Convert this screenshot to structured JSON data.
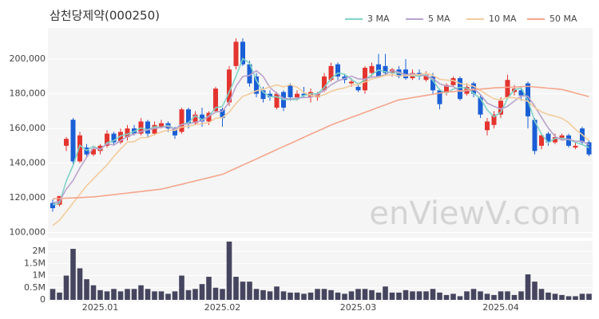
{
  "chart_data": [
    {
      "type": "candlestick",
      "title": "삼천당제약(000250)",
      "watermark": "enViewV.com",
      "up_color": "#e4342f",
      "down_color": "#1a5fd6",
      "open": [
        117000,
        116000,
        150000,
        165000,
        141000,
        149000,
        145000,
        147000,
        150000,
        157000,
        152000,
        155000,
        160000,
        157000,
        164000,
        157000,
        161000,
        163000,
        160000,
        158000,
        171000,
        163000,
        168000,
        164000,
        170000,
        171000,
        175000,
        196000,
        210000,
        197000,
        190000,
        182000,
        180000,
        172000,
        181000,
        185000,
        178000,
        180000,
        178000,
        178000,
        182000,
        188000,
        197000,
        190000,
        186000,
        184000,
        182000,
        192000,
        197000,
        196000,
        192000,
        194000,
        194000,
        189000,
        192000,
        188000,
        190000,
        182000,
        181000,
        185000,
        189000,
        180000,
        186000,
        178000,
        159000,
        162000,
        168000,
        178000,
        181000,
        182000,
        186000,
        165000,
        150000,
        157000,
        152000,
        154000,
        156000,
        149000,
        160000,
        152000
      ],
      "high": [
        119000,
        121000,
        155000,
        166000,
        158000,
        151000,
        150000,
        151000,
        159000,
        158000,
        160000,
        162000,
        162000,
        166000,
        165000,
        164000,
        165000,
        164000,
        161000,
        172000,
        172000,
        170000,
        172000,
        170000,
        184000,
        172000,
        196000,
        212000,
        212000,
        199000,
        192000,
        184000,
        182000,
        181000,
        182000,
        186000,
        182000,
        184000,
        183000,
        181000,
        192000,
        198000,
        198000,
        191000,
        189000,
        186000,
        196000,
        198000,
        203000,
        203000,
        195000,
        196000,
        200000,
        194000,
        194000,
        193000,
        192000,
        183000,
        186000,
        190000,
        190000,
        186000,
        187000,
        179000,
        166000,
        170000,
        178000,
        191000,
        185000,
        184000,
        187000,
        166000,
        157000,
        158000,
        157000,
        157000,
        157000,
        152000,
        161000,
        153000
      ],
      "low": [
        112000,
        115000,
        147000,
        138000,
        140000,
        144000,
        144000,
        145000,
        149000,
        150000,
        151000,
        153000,
        156000,
        156000,
        155000,
        156000,
        160000,
        158000,
        154000,
        157000,
        160000,
        162000,
        161000,
        162000,
        169000,
        161000,
        173000,
        194000,
        196000,
        184000,
        178000,
        175000,
        176000,
        171000,
        170000,
        176000,
        176000,
        178000,
        175000,
        176000,
        181000,
        187000,
        188000,
        186000,
        184000,
        181000,
        180000,
        190000,
        189000,
        191000,
        190000,
        189000,
        188000,
        188000,
        188000,
        187000,
        180000,
        171000,
        179000,
        184000,
        176000,
        179000,
        178000,
        166000,
        156000,
        160000,
        166000,
        177000,
        179000,
        176000,
        160000,
        145000,
        148000,
        150000,
        151000,
        153000,
        149000,
        148000,
        151000,
        144000
      ],
      "close": [
        114000,
        121000,
        154000,
        141000,
        156000,
        145000,
        148000,
        150000,
        157000,
        152000,
        158000,
        160000,
        157000,
        164000,
        157000,
        162000,
        163000,
        160000,
        156000,
        171000,
        163000,
        168000,
        164000,
        169000,
        183000,
        166000,
        194000,
        210000,
        197000,
        186000,
        180000,
        177000,
        178000,
        180000,
        172000,
        178000,
        180000,
        179000,
        181000,
        180000,
        190000,
        196000,
        190000,
        188000,
        187000,
        182000,
        195000,
        196000,
        190000,
        192000,
        194000,
        190000,
        189000,
        192000,
        190000,
        191000,
        182000,
        174000,
        185000,
        189000,
        177000,
        184000,
        180000,
        168000,
        164000,
        168000,
        176000,
        188000,
        183000,
        179000,
        167000,
        147000,
        156000,
        152000,
        155000,
        156000,
        150000,
        150000,
        152000,
        145000
      ],
      "series": [
        {
          "name": "3 MA",
          "color": "#7fd3c6",
          "values": [
            116000,
            117000,
            129700,
            138700,
            150300,
            147300,
            149700,
            147700,
            151700,
            153000,
            155700,
            156700,
            158300,
            160300,
            159300,
            161000,
            160700,
            161700,
            159700,
            162300,
            163300,
            167300,
            165000,
            167000,
            172000,
            172700,
            181000,
            190000,
            200300,
            197700,
            187700,
            181000,
            178300,
            178300,
            176700,
            176700,
            176700,
            179000,
            180000,
            180000,
            183700,
            188700,
            192000,
            191300,
            188300,
            185700,
            188000,
            191000,
            193700,
            192700,
            192000,
            192000,
            191000,
            190300,
            190300,
            191000,
            187700,
            182300,
            180300,
            182700,
            183700,
            183300,
            180300,
            177300,
            170700,
            166700,
            169300,
            177300,
            182300,
            183300,
            176300,
            164300,
            156700,
            151700,
            154300,
            154300,
            153700,
            152000,
            150700,
            149000
          ]
        },
        {
          "name": "5 MA",
          "color": "#b9a3cc",
          "values": [
            117000,
            118000,
            125000,
            130000,
            137200,
            143400,
            148800,
            148000,
            151200,
            150400,
            153000,
            155400,
            156800,
            158200,
            159200,
            160000,
            160600,
            161200,
            159600,
            162400,
            162600,
            163600,
            164400,
            167000,
            169400,
            170000,
            175200,
            184400,
            190000,
            190600,
            193400,
            190000,
            183600,
            180200,
            177400,
            177000,
            177600,
            177800,
            178000,
            179600,
            182000,
            185200,
            187400,
            188800,
            190200,
            188600,
            188400,
            189600,
            190000,
            191000,
            193400,
            192400,
            191000,
            191400,
            191000,
            190400,
            188800,
            185800,
            184400,
            184200,
            181400,
            181800,
            183000,
            179600,
            174600,
            172800,
            171200,
            172800,
            175800,
            178800,
            178600,
            172800,
            166400,
            160200,
            155400,
            153200,
            153800,
            152600,
            152600,
            150600
          ]
        },
        {
          "name": "10 MA",
          "color": "#f3cb9c",
          "values": [
            104000,
            107000,
            112000,
            117000,
            122000,
            127000,
            131000,
            135000,
            139000,
            143800,
            148200,
            152100,
            152400,
            154700,
            154800,
            156500,
            158000,
            159000,
            158900,
            160800,
            161300,
            162100,
            162800,
            163300,
            165900,
            166300,
            169400,
            174400,
            178500,
            180000,
            181700,
            182600,
            184000,
            185100,
            184000,
            185200,
            183800,
            180700,
            179100,
            178500,
            179500,
            181400,
            182600,
            183400,
            184900,
            185300,
            186800,
            188500,
            189400,
            190600,
            191000,
            190400,
            190300,
            190700,
            191000,
            191900,
            190600,
            188400,
            187900,
            187600,
            185900,
            185300,
            184400,
            182000,
            179400,
            177100,
            176500,
            177900,
            177700,
            176700,
            175700,
            172000,
            169600,
            168000,
            167100,
            165900,
            163300,
            159500,
            156400,
            153000
          ]
        },
        {
          "name": "50 MA",
          "color": "#f5a58b",
          "values": [
            119500,
            119600,
            119800,
            119900,
            120100,
            120300,
            120500,
            120900,
            121400,
            121800,
            122300,
            122700,
            123200,
            123600,
            124100,
            124500,
            125000,
            125900,
            126900,
            127800,
            128800,
            129700,
            130700,
            131600,
            132600,
            133500,
            135300,
            137100,
            138900,
            140600,
            142400,
            144200,
            146000,
            147800,
            149600,
            151300,
            153100,
            154900,
            156700,
            158400,
            160200,
            162000,
            163500,
            164900,
            166400,
            167800,
            169300,
            170700,
            172200,
            173600,
            175100,
            176500,
            177100,
            177800,
            178400,
            179100,
            179700,
            180400,
            181000,
            181300,
            181700,
            182000,
            182300,
            182700,
            183000,
            183400,
            183600,
            183800,
            183900,
            184100,
            184300,
            183900,
            183600,
            183200,
            182900,
            182500,
            181500,
            180400,
            179400,
            178300
          ]
        }
      ],
      "ylim": [
        97000,
        218000
      ],
      "yticks": [
        {
          "value": 100000,
          "label": "100,000"
        },
        {
          "value": 120000,
          "label": "120,000"
        },
        {
          "value": 140000,
          "label": "140,000"
        },
        {
          "value": 160000,
          "label": "160,000"
        },
        {
          "value": 180000,
          "label": "180,000"
        },
        {
          "value": 200000,
          "label": "200,000"
        }
      ],
      "grid": true
    },
    {
      "type": "bar",
      "color": "#46455f",
      "categories": [
        null,
        null,
        null,
        null,
        null,
        null,
        null,
        "2025.01",
        null,
        null,
        null,
        null,
        null,
        null,
        null,
        null,
        null,
        null,
        null,
        null,
        null,
        null,
        null,
        null,
        null,
        "2025.02",
        null,
        null,
        null,
        null,
        null,
        null,
        null,
        null,
        null,
        null,
        null,
        null,
        null,
        null,
        null,
        null,
        null,
        null,
        null,
        "2025.03",
        null,
        null,
        null,
        null,
        null,
        null,
        null,
        null,
        null,
        null,
        null,
        null,
        null,
        null,
        null,
        null,
        null,
        null,
        null,
        null,
        "2025.04",
        null,
        null,
        null,
        null,
        null,
        null,
        null,
        null,
        null,
        null,
        null,
        null,
        null
      ],
      "values": [
        450000,
        300000,
        1000000,
        2100000,
        1300000,
        850000,
        600000,
        400000,
        350000,
        450000,
        350000,
        450000,
        450000,
        600000,
        450000,
        350000,
        350000,
        250000,
        350000,
        1000000,
        400000,
        450000,
        650000,
        950000,
        500000,
        450000,
        2400000,
        950000,
        750000,
        750000,
        450000,
        400000,
        350000,
        550000,
        350000,
        300000,
        300000,
        250000,
        300000,
        450000,
        450000,
        400000,
        300000,
        250000,
        350000,
        450000,
        450000,
        400000,
        300000,
        550000,
        300000,
        300000,
        400000,
        350000,
        350000,
        350000,
        450000,
        300000,
        200000,
        250000,
        150000,
        350000,
        450000,
        350000,
        250000,
        200000,
        350000,
        350000,
        200000,
        350000,
        1050000,
        750000,
        450000,
        300000,
        250000,
        200000,
        150000,
        150000,
        250000,
        250000
      ],
      "ylim": [
        0,
        2430000
      ],
      "yticks": [
        0,
        {
          "value": 500000,
          "label": "0.5M"
        },
        {
          "value": 1000000,
          "label": "1M"
        },
        {
          "value": 1500000,
          "label": "1.5M"
        },
        {
          "value": 2000000,
          "label": "2M"
        }
      ],
      "grid": true
    }
  ]
}
